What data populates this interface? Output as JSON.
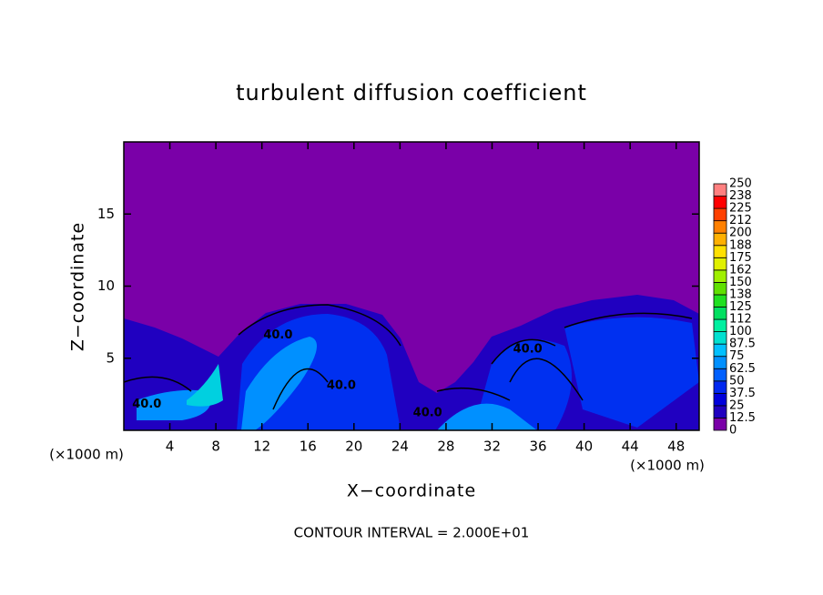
{
  "chart_data": {
    "type": "contour",
    "title": "turbulent diffusion coefficient",
    "x_label": "X−coordinate",
    "y_label": "Z−coordinate",
    "x_unit_left": "(×1000 m)",
    "x_unit_right": "(×1000 m)",
    "footnote": "CONTOUR INTERVAL = 2.000E+01",
    "xlim": [
      0,
      50
    ],
    "ylim": [
      0,
      20
    ],
    "xticks": [
      4,
      8,
      12,
      16,
      20,
      24,
      28,
      32,
      36,
      40,
      44,
      48
    ],
    "yticks": [
      5,
      10,
      15
    ],
    "background_color": "#7a00a8",
    "contour_labels": [
      {
        "text": "40.0",
        "x": 13.4,
        "y": 6.6
      },
      {
        "text": "40.0",
        "x": 18.9,
        "y": 3.1
      },
      {
        "text": "40.0",
        "x": 2.0,
        "y": 1.8
      },
      {
        "text": "40.0",
        "x": 26.4,
        "y": 1.2
      },
      {
        "text": "40.0",
        "x": 35.1,
        "y": 5.6
      }
    ],
    "colorbar": {
      "levels": [
        0,
        12.5,
        25,
        37.5,
        50,
        62.5,
        75,
        87.5,
        100,
        {
          "value": 112.5,
          "label": "112"
        },
        125,
        {
          "value": 137.5,
          "label": "138"
        },
        150,
        {
          "value": 162.5,
          "label": "162"
        },
        175,
        {
          "value": 187.5,
          "label": "188"
        },
        200,
        {
          "value": 212.5,
          "label": "212"
        },
        225,
        {
          "value": 237.5,
          "label": "238"
        },
        250
      ],
      "colors": [
        "#7a00a8",
        "#2000c0",
        "#0000dc",
        "#0028f0",
        "#0060ff",
        "#0090ff",
        "#00c0ff",
        "#00e0d0",
        "#00f0a0",
        "#00e060",
        "#20e020",
        "#60e000",
        "#a0f000",
        "#e0f000",
        "#ffe000",
        "#ffb000",
        "#ff8000",
        "#ff4000",
        "#ff0000",
        "#ff8080"
      ]
    }
  }
}
